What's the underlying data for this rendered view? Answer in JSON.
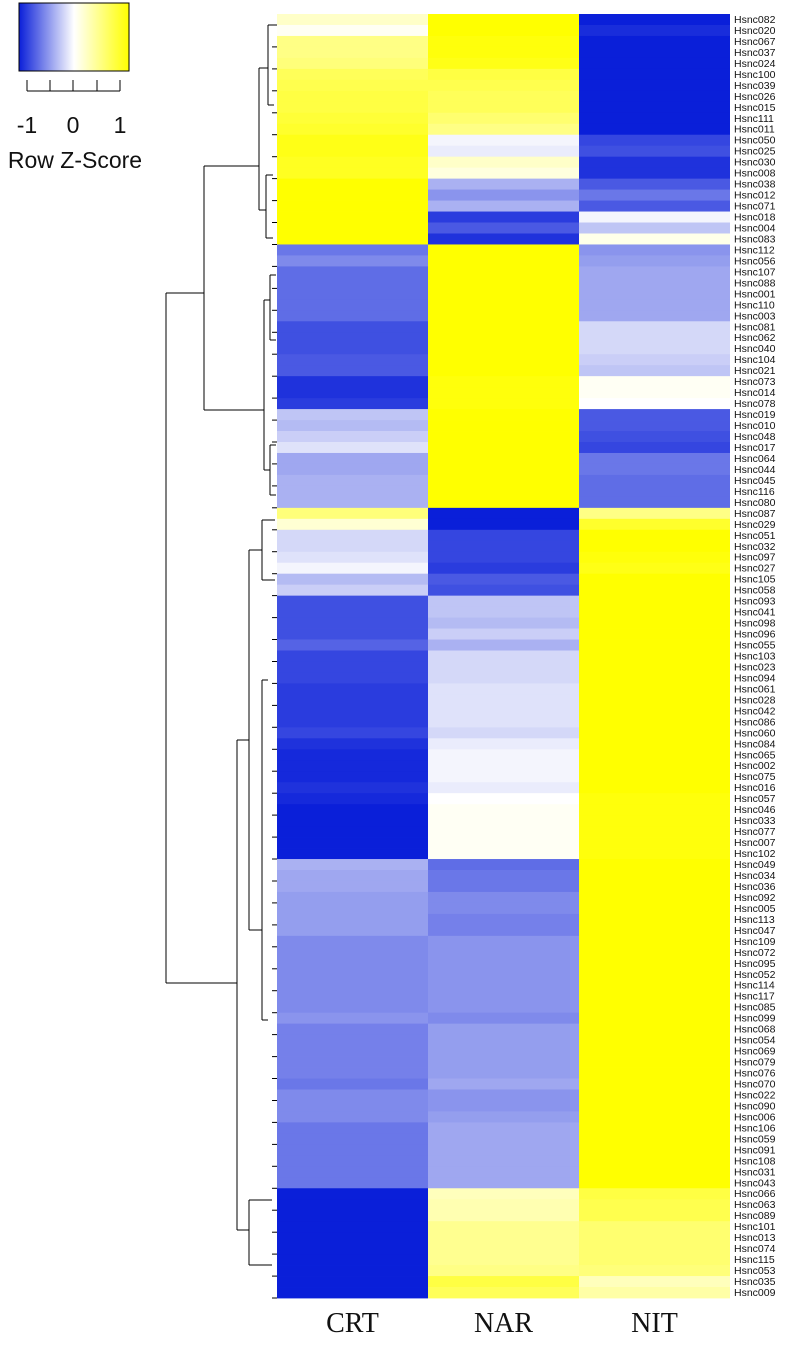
{
  "legend": {
    "title": "Row Z-Score",
    "ticks": [
      "-1",
      "0",
      "1"
    ],
    "colors": {
      "low": "#0a1fd9",
      "mid": "#ffffff",
      "high": "#ffff00"
    }
  },
  "chart_data": {
    "type": "heatmap",
    "columns": [
      "CRT",
      "NAR",
      "NIT"
    ],
    "zlim": [
      -1.15,
      1.15
    ],
    "rows": [
      {
        "label": "Hsnc082",
        "values": [
          0.25,
          1.15,
          -1.15
        ]
      },
      {
        "label": "Hsnc020",
        "values": [
          0.05,
          1.15,
          -1.08
        ]
      },
      {
        "label": "Hsnc067",
        "values": [
          0.55,
          1.1,
          -1.15
        ]
      },
      {
        "label": "Hsnc037",
        "values": [
          0.55,
          1.1,
          -1.15
        ]
      },
      {
        "label": "Hsnc024",
        "values": [
          0.6,
          1.05,
          -1.15
        ]
      },
      {
        "label": "Hsnc100",
        "values": [
          0.75,
          0.85,
          -1.15
        ]
      },
      {
        "label": "Hsnc039",
        "values": [
          0.8,
          0.8,
          -1.15
        ]
      },
      {
        "label": "Hsnc026",
        "values": [
          0.85,
          0.75,
          -1.15
        ]
      },
      {
        "label": "Hsnc015",
        "values": [
          0.85,
          0.75,
          -1.15
        ]
      },
      {
        "label": "Hsnc111",
        "values": [
          0.9,
          0.65,
          -1.15
        ]
      },
      {
        "label": "Hsnc011",
        "values": [
          0.95,
          0.55,
          -1.15
        ]
      },
      {
        "label": "Hsnc050",
        "values": [
          1.05,
          -0.05,
          -0.95
        ]
      },
      {
        "label": "Hsnc025",
        "values": [
          1.05,
          -0.1,
          -0.9
        ]
      },
      {
        "label": "Hsnc030",
        "values": [
          1.0,
          0.25,
          -1.05
        ]
      },
      {
        "label": "Hsnc008",
        "values": [
          1.0,
          0.15,
          -1.05
        ]
      },
      {
        "label": "Hsnc038",
        "values": [
          1.15,
          -0.4,
          -0.85
        ]
      },
      {
        "label": "Hsnc012",
        "values": [
          1.15,
          -0.55,
          -0.7
        ]
      },
      {
        "label": "Hsnc071",
        "values": [
          1.15,
          -0.4,
          -0.85
        ]
      },
      {
        "label": "Hsnc018",
        "values": [
          1.15,
          -1.0,
          -0.05
        ]
      },
      {
        "label": "Hsnc004",
        "values": [
          1.15,
          -0.85,
          -0.3
        ]
      },
      {
        "label": "Hsnc083",
        "values": [
          1.15,
          -1.05,
          0.1
        ]
      },
      {
        "label": "Hsnc112",
        "values": [
          -0.7,
          1.15,
          -0.55
        ]
      },
      {
        "label": "Hsnc056",
        "values": [
          -0.6,
          1.15,
          -0.5
        ]
      },
      {
        "label": "Hsnc107",
        "values": [
          -0.75,
          1.15,
          -0.45
        ]
      },
      {
        "label": "Hsnc088",
        "values": [
          -0.75,
          1.15,
          -0.45
        ]
      },
      {
        "label": "Hsnc001",
        "values": [
          -0.75,
          1.15,
          -0.45
        ]
      },
      {
        "label": "Hsnc110",
        "values": [
          -0.75,
          1.15,
          -0.45
        ]
      },
      {
        "label": "Hsnc003",
        "values": [
          -0.75,
          1.15,
          -0.45
        ]
      },
      {
        "label": "Hsnc081",
        "values": [
          -0.9,
          1.15,
          -0.2
        ]
      },
      {
        "label": "Hsnc062",
        "values": [
          -0.9,
          1.15,
          -0.2
        ]
      },
      {
        "label": "Hsnc040",
        "values": [
          -0.9,
          1.15,
          -0.2
        ]
      },
      {
        "label": "Hsnc104",
        "values": [
          -0.85,
          1.15,
          -0.25
        ]
      },
      {
        "label": "Hsnc021",
        "values": [
          -0.85,
          1.15,
          -0.3
        ]
      },
      {
        "label": "Hsnc073",
        "values": [
          -1.05,
          1.1,
          0.05
        ]
      },
      {
        "label": "Hsnc014",
        "values": [
          -1.05,
          1.1,
          0.05
        ]
      },
      {
        "label": "Hsnc078",
        "values": [
          -1.0,
          1.1,
          0.0
        ]
      },
      {
        "label": "Hsnc019",
        "values": [
          -0.3,
          1.15,
          -0.85
        ]
      },
      {
        "label": "Hsnc010",
        "values": [
          -0.35,
          1.15,
          -0.85
        ]
      },
      {
        "label": "Hsnc048",
        "values": [
          -0.25,
          1.15,
          -0.9
        ]
      },
      {
        "label": "Hsnc017",
        "values": [
          -0.15,
          1.15,
          -0.95
        ]
      },
      {
        "label": "Hsnc064",
        "values": [
          -0.45,
          1.15,
          -0.7
        ]
      },
      {
        "label": "Hsnc044",
        "values": [
          -0.45,
          1.15,
          -0.7
        ]
      },
      {
        "label": "Hsnc045",
        "values": [
          -0.4,
          1.15,
          -0.75
        ]
      },
      {
        "label": "Hsnc116",
        "values": [
          -0.4,
          1.15,
          -0.75
        ]
      },
      {
        "label": "Hsnc080",
        "values": [
          -0.4,
          1.15,
          -0.75
        ]
      },
      {
        "label": "Hsnc087",
        "values": [
          0.6,
          -1.15,
          0.55
        ]
      },
      {
        "label": "Hsnc029",
        "values": [
          0.2,
          -1.15,
          0.95
        ]
      },
      {
        "label": "Hsnc051",
        "values": [
          -0.2,
          -0.95,
          1.15
        ]
      },
      {
        "label": "Hsnc032",
        "values": [
          -0.2,
          -0.95,
          1.15
        ]
      },
      {
        "label": "Hsnc097",
        "values": [
          -0.15,
          -0.95,
          1.1
        ]
      },
      {
        "label": "Hsnc027",
        "values": [
          -0.05,
          -1.0,
          1.05
        ]
      },
      {
        "label": "Hsnc105",
        "values": [
          -0.35,
          -0.85,
          1.15
        ]
      },
      {
        "label": "Hsnc058",
        "values": [
          -0.25,
          -0.9,
          1.15
        ]
      },
      {
        "label": "Hsnc093",
        "values": [
          -0.9,
          -0.3,
          1.15
        ]
      },
      {
        "label": "Hsnc041",
        "values": [
          -0.9,
          -0.3,
          1.15
        ]
      },
      {
        "label": "Hsnc098",
        "values": [
          -0.9,
          -0.35,
          1.15
        ]
      },
      {
        "label": "Hsnc096",
        "values": [
          -0.9,
          -0.25,
          1.15
        ]
      },
      {
        "label": "Hsnc055",
        "values": [
          -0.8,
          -0.4,
          1.15
        ]
      },
      {
        "label": "Hsnc103",
        "values": [
          -0.95,
          -0.2,
          1.15
        ]
      },
      {
        "label": "Hsnc023",
        "values": [
          -0.95,
          -0.2,
          1.15
        ]
      },
      {
        "label": "Hsnc094",
        "values": [
          -0.95,
          -0.2,
          1.15
        ]
      },
      {
        "label": "Hsnc061",
        "values": [
          -1.0,
          -0.15,
          1.15
        ]
      },
      {
        "label": "Hsnc028",
        "values": [
          -1.0,
          -0.15,
          1.15
        ]
      },
      {
        "label": "Hsnc042",
        "values": [
          -1.0,
          -0.15,
          1.15
        ]
      },
      {
        "label": "Hsnc086",
        "values": [
          -1.0,
          -0.15,
          1.15
        ]
      },
      {
        "label": "Hsnc060",
        "values": [
          -0.95,
          -0.2,
          1.15
        ]
      },
      {
        "label": "Hsnc084",
        "values": [
          -1.05,
          -0.1,
          1.15
        ]
      },
      {
        "label": "Hsnc065",
        "values": [
          -1.1,
          -0.05,
          1.15
        ]
      },
      {
        "label": "Hsnc002",
        "values": [
          -1.1,
          -0.05,
          1.15
        ]
      },
      {
        "label": "Hsnc075",
        "values": [
          -1.1,
          -0.05,
          1.15
        ]
      },
      {
        "label": "Hsnc016",
        "values": [
          -1.05,
          -0.1,
          1.15
        ]
      },
      {
        "label": "Hsnc057",
        "values": [
          -1.1,
          0.0,
          1.1
        ]
      },
      {
        "label": "Hsnc046",
        "values": [
          -1.15,
          0.05,
          1.1
        ]
      },
      {
        "label": "Hsnc033",
        "values": [
          -1.15,
          0.05,
          1.1
        ]
      },
      {
        "label": "Hsnc077",
        "values": [
          -1.15,
          0.05,
          1.1
        ]
      },
      {
        "label": "Hsnc007",
        "values": [
          -1.15,
          0.05,
          1.1
        ]
      },
      {
        "label": "Hsnc102",
        "values": [
          -1.15,
          0.05,
          1.1
        ]
      },
      {
        "label": "Hsnc049",
        "values": [
          -0.4,
          -0.75,
          1.15
        ]
      },
      {
        "label": "Hsnc034",
        "values": [
          -0.45,
          -0.7,
          1.15
        ]
      },
      {
        "label": "Hsnc036",
        "values": [
          -0.45,
          -0.7,
          1.15
        ]
      },
      {
        "label": "Hsnc092",
        "values": [
          -0.5,
          -0.6,
          1.15
        ]
      },
      {
        "label": "Hsnc005",
        "values": [
          -0.5,
          -0.6,
          1.15
        ]
      },
      {
        "label": "Hsnc113",
        "values": [
          -0.5,
          -0.65,
          1.15
        ]
      },
      {
        "label": "Hsnc047",
        "values": [
          -0.5,
          -0.65,
          1.15
        ]
      },
      {
        "label": "Hsnc109",
        "values": [
          -0.6,
          -0.55,
          1.15
        ]
      },
      {
        "label": "Hsnc072",
        "values": [
          -0.6,
          -0.55,
          1.15
        ]
      },
      {
        "label": "Hsnc095",
        "values": [
          -0.6,
          -0.55,
          1.15
        ]
      },
      {
        "label": "Hsnc052",
        "values": [
          -0.6,
          -0.55,
          1.15
        ]
      },
      {
        "label": "Hsnc114",
        "values": [
          -0.6,
          -0.55,
          1.15
        ]
      },
      {
        "label": "Hsnc117",
        "values": [
          -0.6,
          -0.55,
          1.15
        ]
      },
      {
        "label": "Hsnc085",
        "values": [
          -0.6,
          -0.55,
          1.15
        ]
      },
      {
        "label": "Hsnc099",
        "values": [
          -0.55,
          -0.6,
          1.15
        ]
      },
      {
        "label": "Hsnc068",
        "values": [
          -0.65,
          -0.5,
          1.15
        ]
      },
      {
        "label": "Hsnc054",
        "values": [
          -0.65,
          -0.5,
          1.15
        ]
      },
      {
        "label": "Hsnc069",
        "values": [
          -0.65,
          -0.5,
          1.15
        ]
      },
      {
        "label": "Hsnc079",
        "values": [
          -0.65,
          -0.5,
          1.15
        ]
      },
      {
        "label": "Hsnc076",
        "values": [
          -0.65,
          -0.5,
          1.15
        ]
      },
      {
        "label": "Hsnc070",
        "values": [
          -0.7,
          -0.45,
          1.15
        ]
      },
      {
        "label": "Hsnc022",
        "values": [
          -0.6,
          -0.55,
          1.15
        ]
      },
      {
        "label": "Hsnc090",
        "values": [
          -0.6,
          -0.55,
          1.15
        ]
      },
      {
        "label": "Hsnc006",
        "values": [
          -0.6,
          -0.5,
          1.15
        ]
      },
      {
        "label": "Hsnc106",
        "values": [
          -0.7,
          -0.45,
          1.15
        ]
      },
      {
        "label": "Hsnc059",
        "values": [
          -0.7,
          -0.45,
          1.15
        ]
      },
      {
        "label": "Hsnc091",
        "values": [
          -0.7,
          -0.45,
          1.15
        ]
      },
      {
        "label": "Hsnc108",
        "values": [
          -0.7,
          -0.45,
          1.15
        ]
      },
      {
        "label": "Hsnc031",
        "values": [
          -0.7,
          -0.45,
          1.15
        ]
      },
      {
        "label": "Hsnc043",
        "values": [
          -0.7,
          -0.45,
          1.15
        ]
      },
      {
        "label": "Hsnc066",
        "values": [
          -1.15,
          0.3,
          0.85
        ]
      },
      {
        "label": "Hsnc063",
        "values": [
          -1.15,
          0.35,
          0.8
        ]
      },
      {
        "label": "Hsnc089",
        "values": [
          -1.15,
          0.35,
          0.8
        ]
      },
      {
        "label": "Hsnc101",
        "values": [
          -1.15,
          0.5,
          0.65
        ]
      },
      {
        "label": "Hsnc013",
        "values": [
          -1.15,
          0.5,
          0.65
        ]
      },
      {
        "label": "Hsnc074",
        "values": [
          -1.15,
          0.5,
          0.65
        ]
      },
      {
        "label": "Hsnc115",
        "values": [
          -1.15,
          0.5,
          0.65
        ]
      },
      {
        "label": "Hsnc053",
        "values": [
          -1.15,
          0.55,
          0.6
        ]
      },
      {
        "label": "Hsnc035",
        "values": [
          -1.15,
          0.85,
          0.3
        ]
      },
      {
        "label": "Hsnc009",
        "values": [
          -1.15,
          0.75,
          0.4
        ]
      }
    ]
  }
}
